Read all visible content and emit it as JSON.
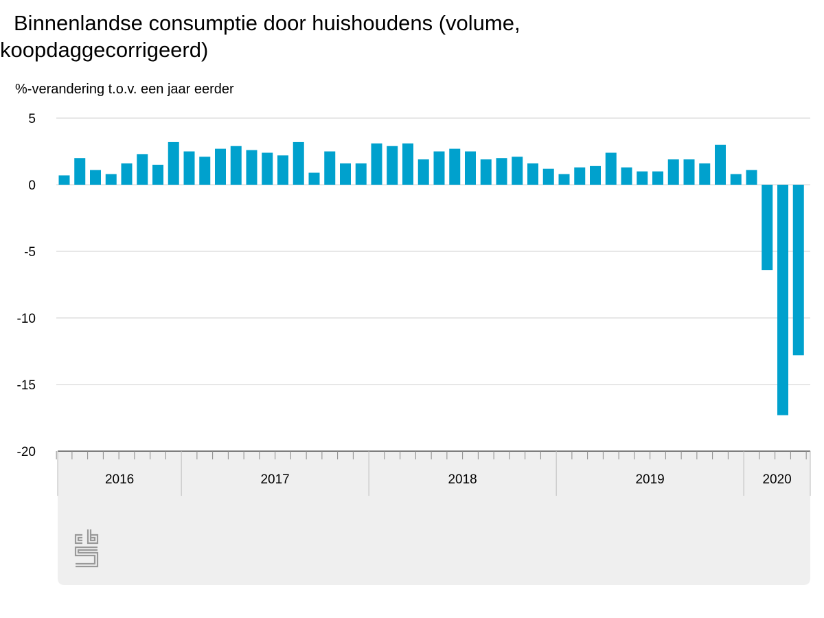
{
  "chart_data": {
    "type": "bar",
    "title": "Binnenlandse consumptie door huishoudens (volume, koopdaggecorrigeerd)",
    "ylabel": "%-verandering t.o.v. een jaar eerder",
    "ylim": [
      -20,
      5
    ],
    "yticks": [
      "5",
      "0",
      "-5",
      "-10",
      "-15",
      "-20"
    ],
    "grid": true,
    "bar_color": "#00a1cd",
    "year_labels": [
      "2016",
      "2017",
      "2018",
      "2019",
      "2020"
    ],
    "categories": [
      "2016-05",
      "2016-06",
      "2016-07",
      "2016-08",
      "2016-09",
      "2016-10",
      "2016-11",
      "2016-12",
      "2017-01",
      "2017-02",
      "2017-03",
      "2017-04",
      "2017-05",
      "2017-06",
      "2017-07",
      "2017-08",
      "2017-09",
      "2017-10",
      "2017-11",
      "2017-12",
      "2018-01",
      "2018-02",
      "2018-03",
      "2018-04",
      "2018-05",
      "2018-06",
      "2018-07",
      "2018-08",
      "2018-09",
      "2018-10",
      "2018-11",
      "2018-12",
      "2019-01",
      "2019-02",
      "2019-03",
      "2019-04",
      "2019-05",
      "2019-06",
      "2019-07",
      "2019-08",
      "2019-09",
      "2019-10",
      "2019-11",
      "2019-12",
      "2020-01",
      "2020-02",
      "2020-03",
      "2020-04",
      "2020-05"
    ],
    "values": [
      0.7,
      2.0,
      1.1,
      0.8,
      1.6,
      2.3,
      1.5,
      3.2,
      2.5,
      2.1,
      2.7,
      2.9,
      2.6,
      2.4,
      2.2,
      3.2,
      0.9,
      2.5,
      1.6,
      1.6,
      3.1,
      2.9,
      3.1,
      1.9,
      2.5,
      2.7,
      2.5,
      1.9,
      2.0,
      2.1,
      1.6,
      1.2,
      0.8,
      1.3,
      1.4,
      2.4,
      1.3,
      1.0,
      1.0,
      1.9,
      1.9,
      1.6,
      3.0,
      0.8,
      1.1,
      -6.4,
      -17.3,
      -12.8,
      0
    ]
  },
  "logo": {
    "name": "cbs-logo-icon",
    "text": "cbs"
  }
}
